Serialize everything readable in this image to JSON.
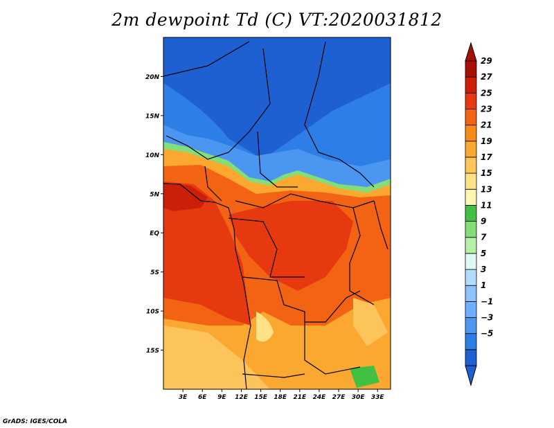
{
  "title": "2m dewpoint Td (C) VT:2020031812",
  "credit": "GrADS: IGES/COLA",
  "map": {
    "lat_range": [
      -20,
      25
    ],
    "lon_range": [
      0,
      35
    ],
    "lat_ticks": [
      {
        "value": 20,
        "label": "20N"
      },
      {
        "value": 15,
        "label": "15N"
      },
      {
        "value": 10,
        "label": "10N"
      },
      {
        "value": 5,
        "label": "5N"
      },
      {
        "value": 0,
        "label": "EQ"
      },
      {
        "value": -5,
        "label": "5S"
      },
      {
        "value": -10,
        "label": "10S"
      },
      {
        "value": -15,
        "label": "15S"
      }
    ],
    "lon_ticks": [
      {
        "value": 3,
        "label": "3E"
      },
      {
        "value": 6,
        "label": "6E"
      },
      {
        "value": 9,
        "label": "9E"
      },
      {
        "value": 12,
        "label": "12E"
      },
      {
        "value": 15,
        "label": "15E"
      },
      {
        "value": 18,
        "label": "18E"
      },
      {
        "value": 21,
        "label": "21E"
      },
      {
        "value": 24,
        "label": "24E"
      },
      {
        "value": 27,
        "label": "27E"
      },
      {
        "value": 30,
        "label": "30E"
      },
      {
        "value": 33,
        "label": "33E"
      }
    ]
  },
  "colorbar": {
    "labels": [
      "29",
      "27",
      "25",
      "23",
      "21",
      "19",
      "17",
      "15",
      "13",
      "11",
      "9",
      "7",
      "5",
      "3",
      "1",
      "−1",
      "−3",
      "−5"
    ],
    "colors": [
      "#1e5fd2",
      "#2d7ee6",
      "#4a96f0",
      "#6eafff",
      "#8cc3ff",
      "#b4dcff",
      "#e0f7f4",
      "#b6f0a8",
      "#84de78",
      "#42c042",
      "#fff6b0",
      "#ffe186",
      "#fdc45c",
      "#fba830",
      "#f88916",
      "#f26414",
      "#e6390f",
      "#cc1f0a",
      "#a50f04"
    ]
  }
}
